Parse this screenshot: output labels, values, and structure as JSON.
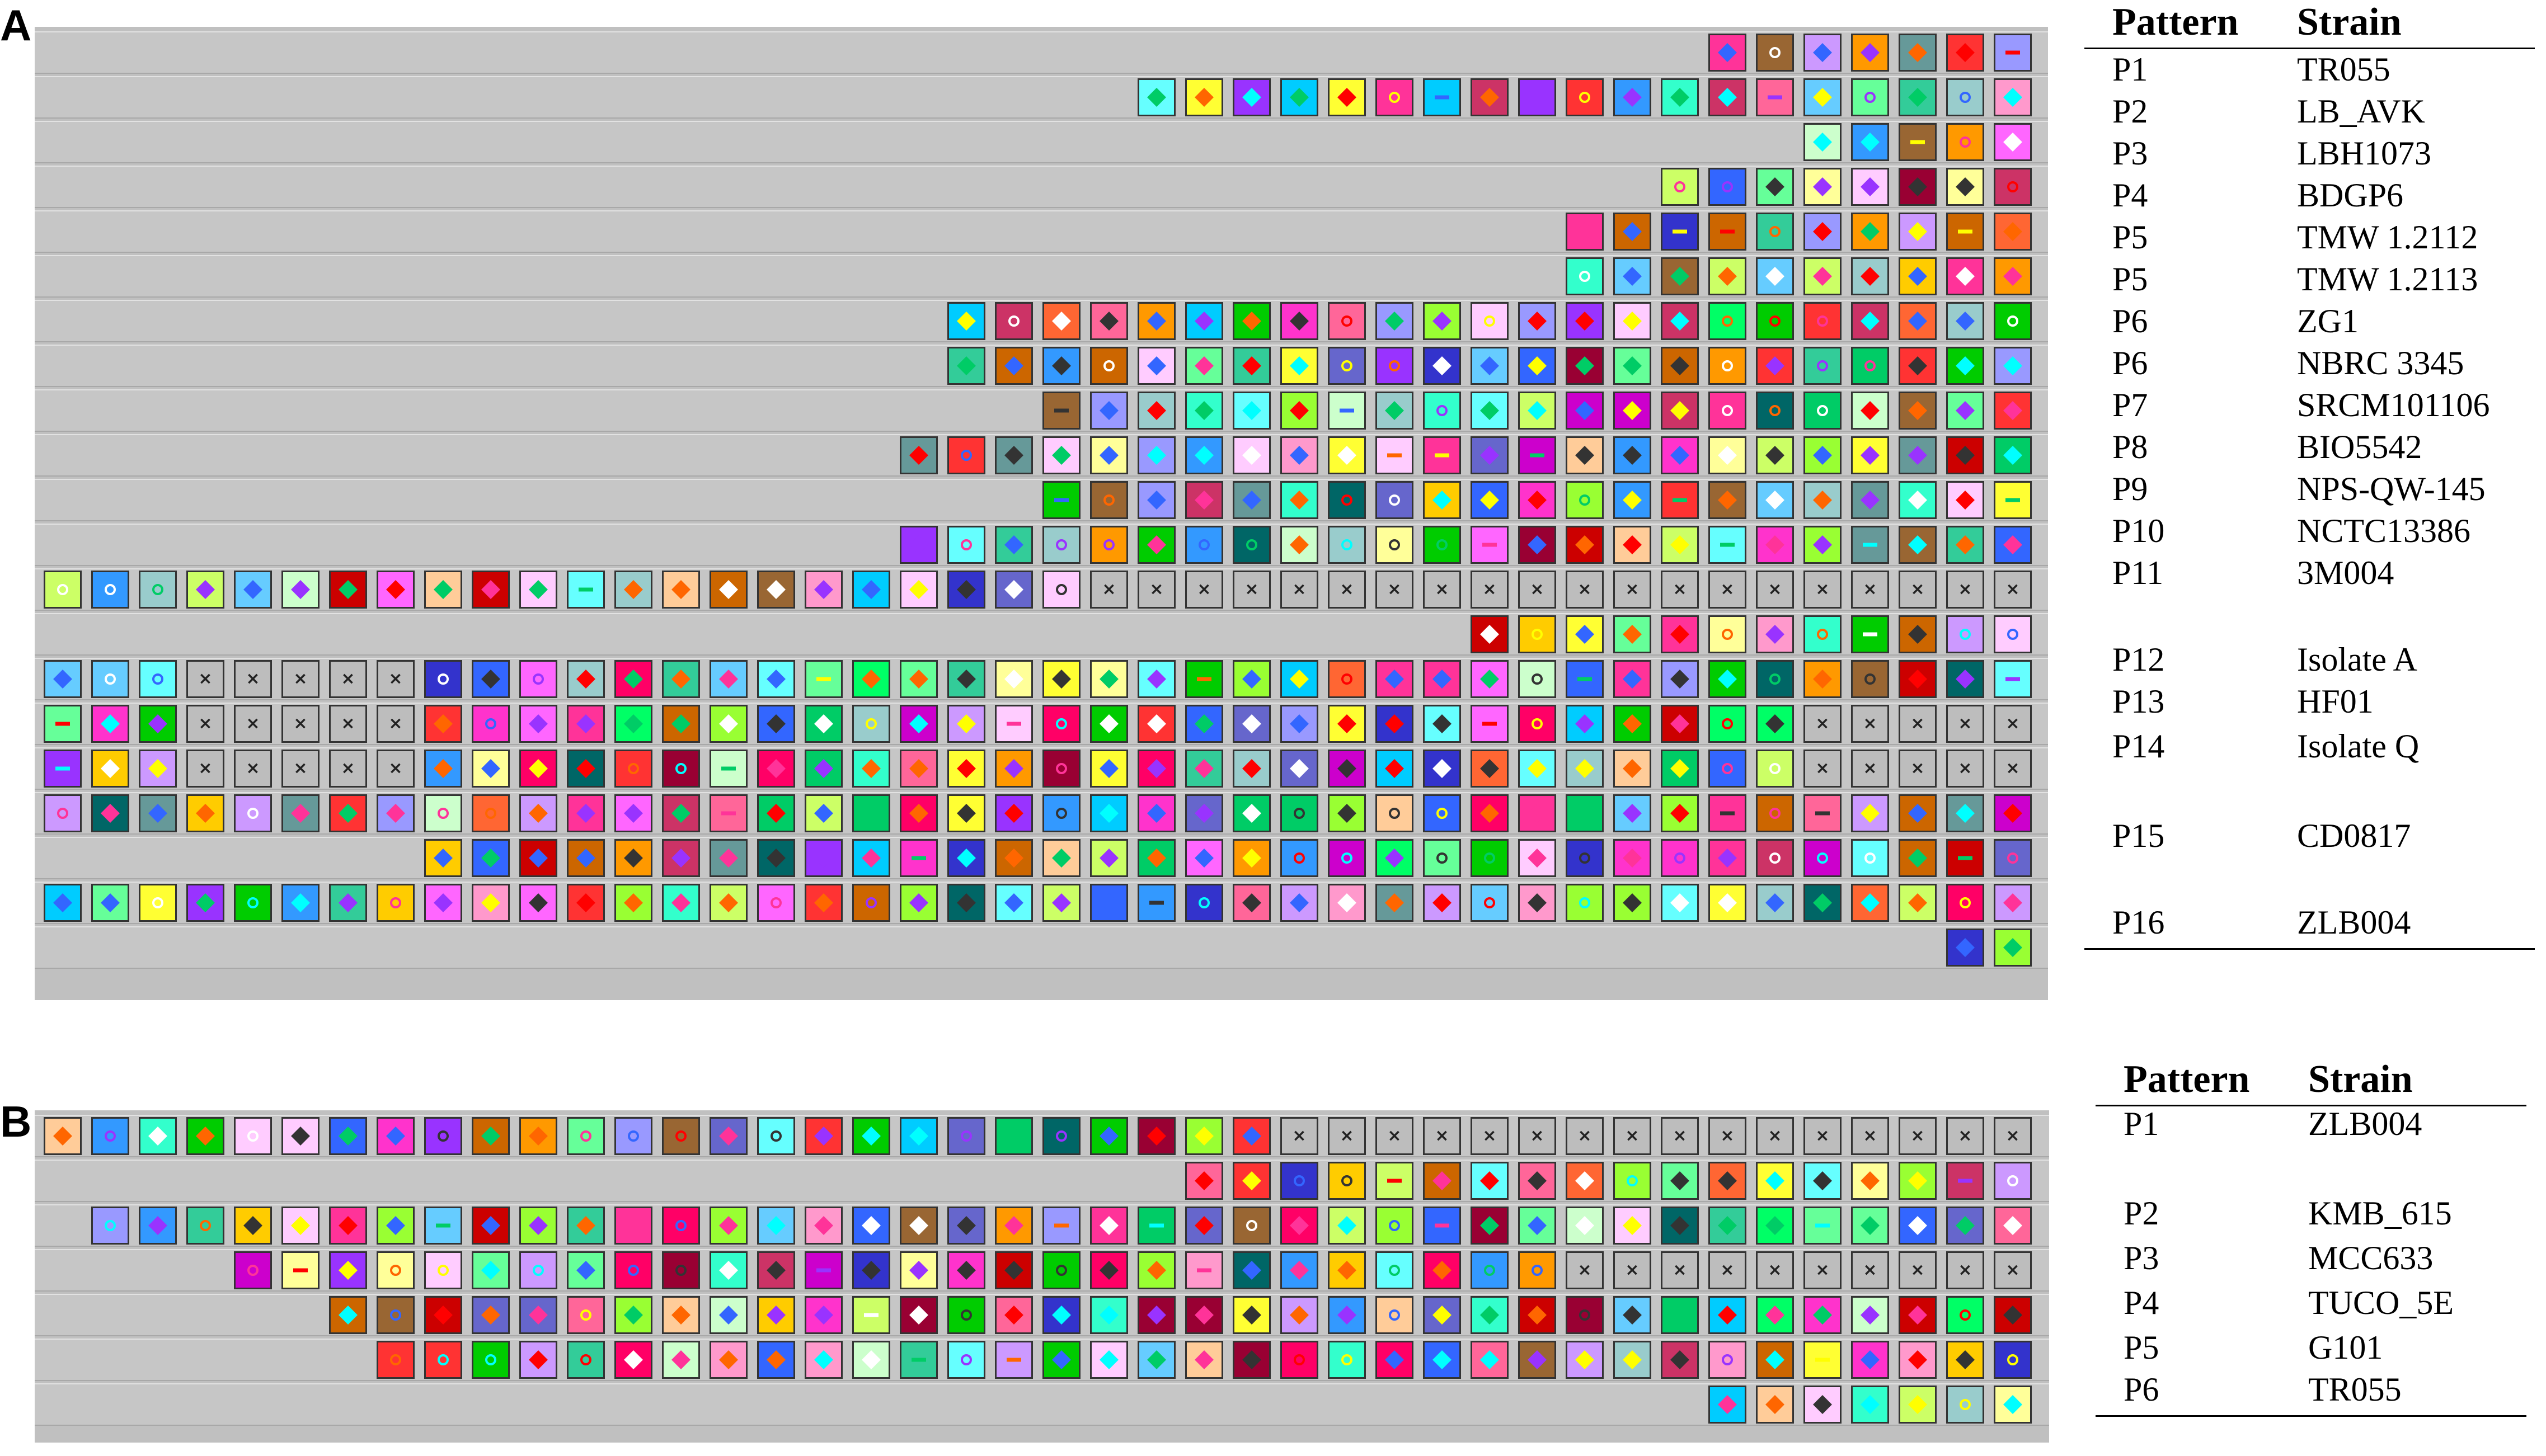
{
  "panels": [
    {
      "label": "A",
      "legend": {
        "header_pattern": "Pattern",
        "header_strain": "Strain",
        "rows": [
          {
            "pattern": "P1",
            "strain": "TR055"
          },
          {
            "pattern": "P2",
            "strain": "LB_AVK"
          },
          {
            "pattern": "P3",
            "strain": "LBH1073"
          },
          {
            "pattern": "P4",
            "strain": "BDGP6"
          },
          {
            "pattern": "P5",
            "strain": "TMW 1.2112"
          },
          {
            "pattern": "P5",
            "strain": "TMW 1.2113"
          },
          {
            "pattern": "P6",
            "strain": "ZG1"
          },
          {
            "pattern": "P6",
            "strain": "NBRC 3345"
          },
          {
            "pattern": "P7",
            "strain": "SRCM101106"
          },
          {
            "pattern": "P8",
            "strain": "BIO5542"
          },
          {
            "pattern": "P9",
            "strain": "NPS-QW-145"
          },
          {
            "pattern": "P10",
            "strain": "NCTC13386"
          },
          {
            "pattern": "P11",
            "strain": "3M004"
          },
          {
            "pattern": "P12",
            "strain": "Isolate A"
          },
          {
            "pattern": "P13",
            "strain": "HF01"
          },
          {
            "pattern": "P14",
            "strain": "Isolate Q"
          },
          {
            "pattern": "P15",
            "strain": "CD0817"
          },
          {
            "pattern": "P16",
            "strain": "ZLB004"
          }
        ]
      },
      "arrays": [
        {
          "start": 35,
          "count": 7
        },
        {
          "start": 23,
          "count": 19
        },
        {
          "start": 37,
          "count": 5
        },
        {
          "start": 34,
          "count": 8
        },
        {
          "start": 32,
          "count": 10
        },
        {
          "start": 32,
          "count": 10
        },
        {
          "start": 19,
          "count": 23
        },
        {
          "start": 19,
          "count": 23
        },
        {
          "start": 21,
          "count": 21
        },
        {
          "start": 18,
          "count": 24
        },
        {
          "start": 21,
          "count": 21
        },
        {
          "start": 18,
          "count": 24
        },
        {
          "start": 0,
          "count": 42
        },
        {
          "start": 30,
          "count": 12
        },
        {
          "start": 0,
          "count": 42
        },
        {
          "start": 0,
          "count": 42
        },
        {
          "start": 0,
          "count": 42
        },
        {
          "start": 0,
          "count": 42
        },
        {
          "start": 8,
          "count": 34
        },
        {
          "start": 0,
          "count": 42
        },
        {
          "start": 40,
          "count": 2
        }
      ]
    },
    {
      "label": "B",
      "legend": {
        "header_pattern": "Pattern",
        "header_strain": "Strain",
        "rows": [
          {
            "pattern": "P1",
            "strain": "ZLB004"
          },
          {
            "pattern": "P2",
            "strain": "KMB_615"
          },
          {
            "pattern": "P3",
            "strain": "MCC633"
          },
          {
            "pattern": "P4",
            "strain": "TUCO_5E"
          },
          {
            "pattern": "P5",
            "strain": "G101"
          },
          {
            "pattern": "P6",
            "strain": "TR055"
          }
        ]
      },
      "arrays": [
        {
          "start": 0,
          "count": 42
        },
        {
          "start": 24,
          "count": 18
        },
        {
          "start": 1,
          "count": 41
        },
        {
          "start": 4,
          "count": 38
        },
        {
          "start": 6,
          "count": 36
        },
        {
          "start": 7,
          "count": 35
        },
        {
          "start": 35,
          "count": 7
        }
      ]
    }
  ]
}
